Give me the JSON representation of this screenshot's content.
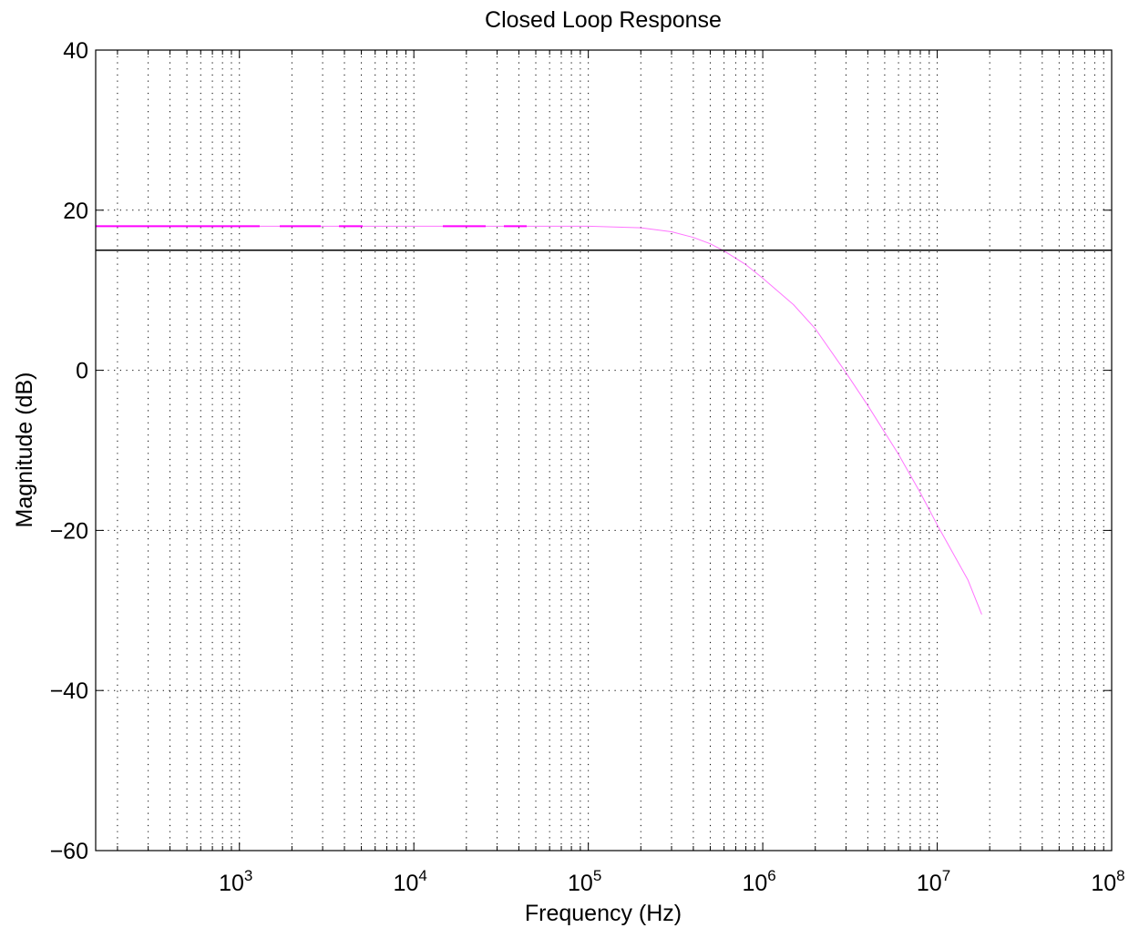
{
  "chart_data": {
    "type": "line",
    "title": "Closed Loop Response",
    "xlabel": "Frequency (Hz)",
    "ylabel": "Magnitude (dB)",
    "xscale": "log",
    "xlim": [
      150,
      100000000
    ],
    "ylim": [
      -60,
      40
    ],
    "grid": true,
    "x_ticks": [
      {
        "value": 1000,
        "base": "10",
        "exp": "3"
      },
      {
        "value": 10000,
        "base": "10",
        "exp": "4"
      },
      {
        "value": 100000,
        "base": "10",
        "exp": "5"
      },
      {
        "value": 1000000,
        "base": "10",
        "exp": "6"
      },
      {
        "value": 10000000,
        "base": "10",
        "exp": "7"
      },
      {
        "value": 100000000,
        "base": "10",
        "exp": "8"
      }
    ],
    "y_ticks": [
      {
        "value": 40,
        "label": "40"
      },
      {
        "value": 20,
        "label": "20"
      },
      {
        "value": 0,
        "label": "0"
      },
      {
        "value": -20,
        "label": "−20"
      },
      {
        "value": -40,
        "label": "−40"
      },
      {
        "value": -60,
        "label": "−60"
      }
    ],
    "series": [
      {
        "color": "#ff00ff",
        "style": "solid-faint",
        "x": [
          150,
          1000,
          10000,
          100000,
          200000,
          300000,
          400000,
          500000,
          600000,
          800000,
          1000000,
          1500000,
          2000000,
          3000000,
          4000000,
          6000000,
          8000000,
          10000000,
          15000000,
          18000000
        ],
        "y": [
          18,
          18,
          18,
          18,
          17.8,
          17.3,
          16.6,
          15.8,
          14.9,
          13.2,
          11.5,
          8.2,
          5.2,
          -0.3,
          -4.4,
          -10.5,
          -15.3,
          -19.3,
          -26.2,
          -30.5
        ]
      },
      {
        "color": "#ff00ff",
        "style": "dashed-overlay",
        "x": [
          150,
          60000
        ],
        "y": [
          18,
          18
        ]
      },
      {
        "color": "#000000",
        "style": "solid",
        "x": [
          150,
          100000000
        ],
        "y": [
          15,
          15
        ]
      }
    ]
  }
}
